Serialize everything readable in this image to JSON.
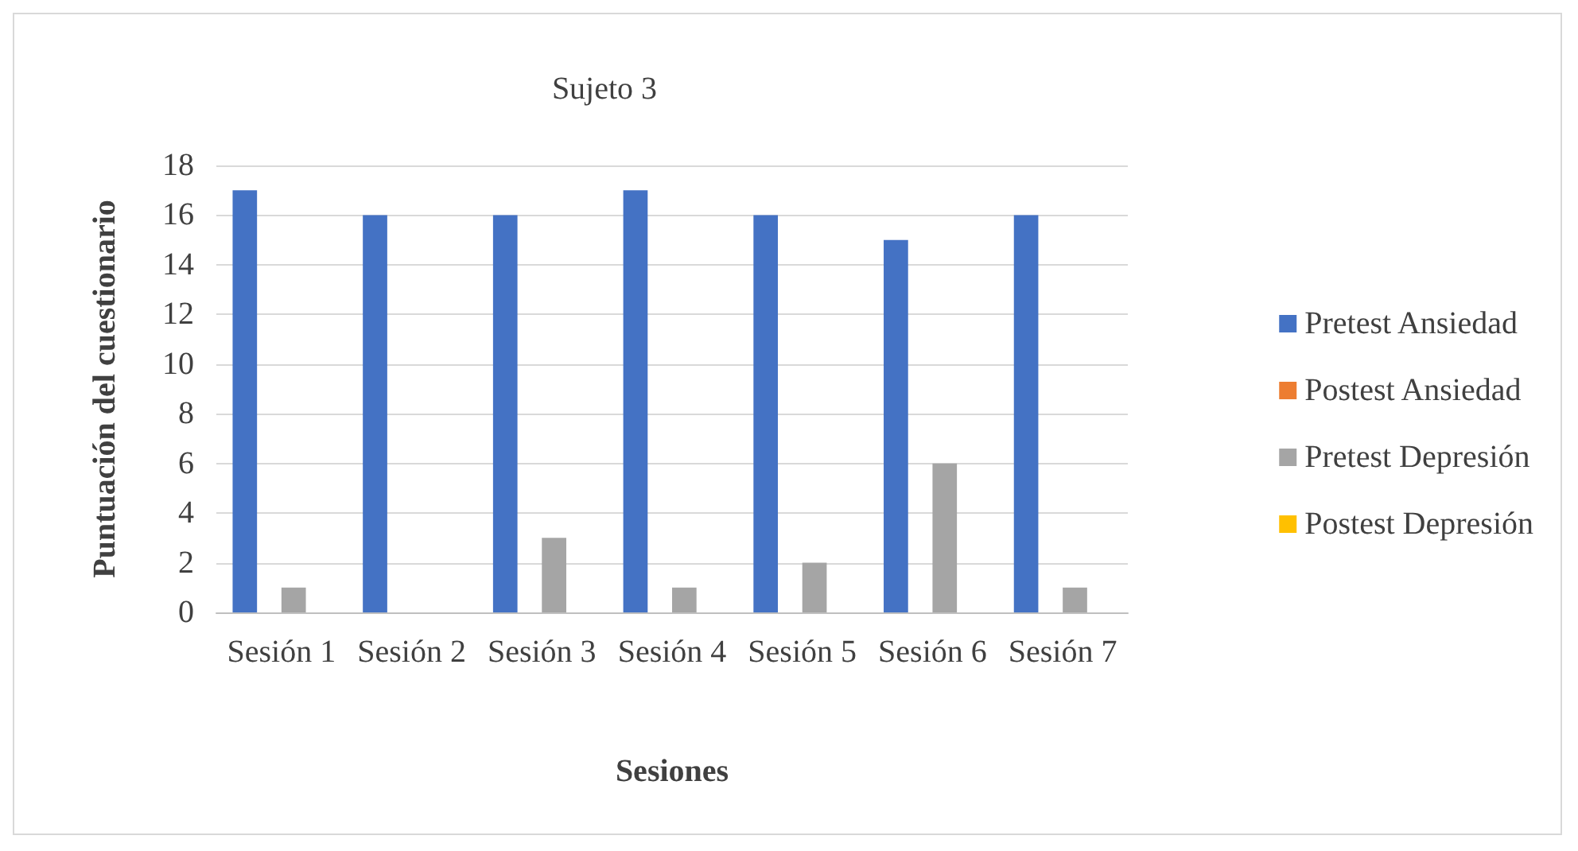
{
  "chart_data": {
    "type": "bar",
    "title": "Sujeto 3",
    "xlabel": "Sesiones",
    "ylabel": "Puntuación del cuestionario",
    "categories": [
      "Sesión 1",
      "Sesión 2",
      "Sesión 3",
      "Sesión 4",
      "Sesión 5",
      "Sesión 6",
      "Sesión 7"
    ],
    "series": [
      {
        "name": "Pretest Ansiedad",
        "color": "#4472c4",
        "values": [
          17,
          16,
          16,
          17,
          16,
          15,
          16
        ]
      },
      {
        "name": "Postest Ansiedad",
        "color": "#ed7d31",
        "values": [
          0,
          0,
          0,
          0,
          0,
          0,
          0
        ]
      },
      {
        "name": "Pretest Depresión",
        "color": "#a5a5a5",
        "values": [
          1,
          0,
          3,
          1,
          2,
          6,
          1
        ]
      },
      {
        "name": "Postest Depresión",
        "color": "#ffc000",
        "values": [
          0,
          0,
          0,
          0,
          0,
          0,
          0
        ]
      }
    ],
    "ylim": [
      0,
      18
    ],
    "yticks": [
      0,
      2,
      4,
      6,
      8,
      10,
      12,
      14,
      16,
      18
    ],
    "grid": "y",
    "legend": "right"
  }
}
